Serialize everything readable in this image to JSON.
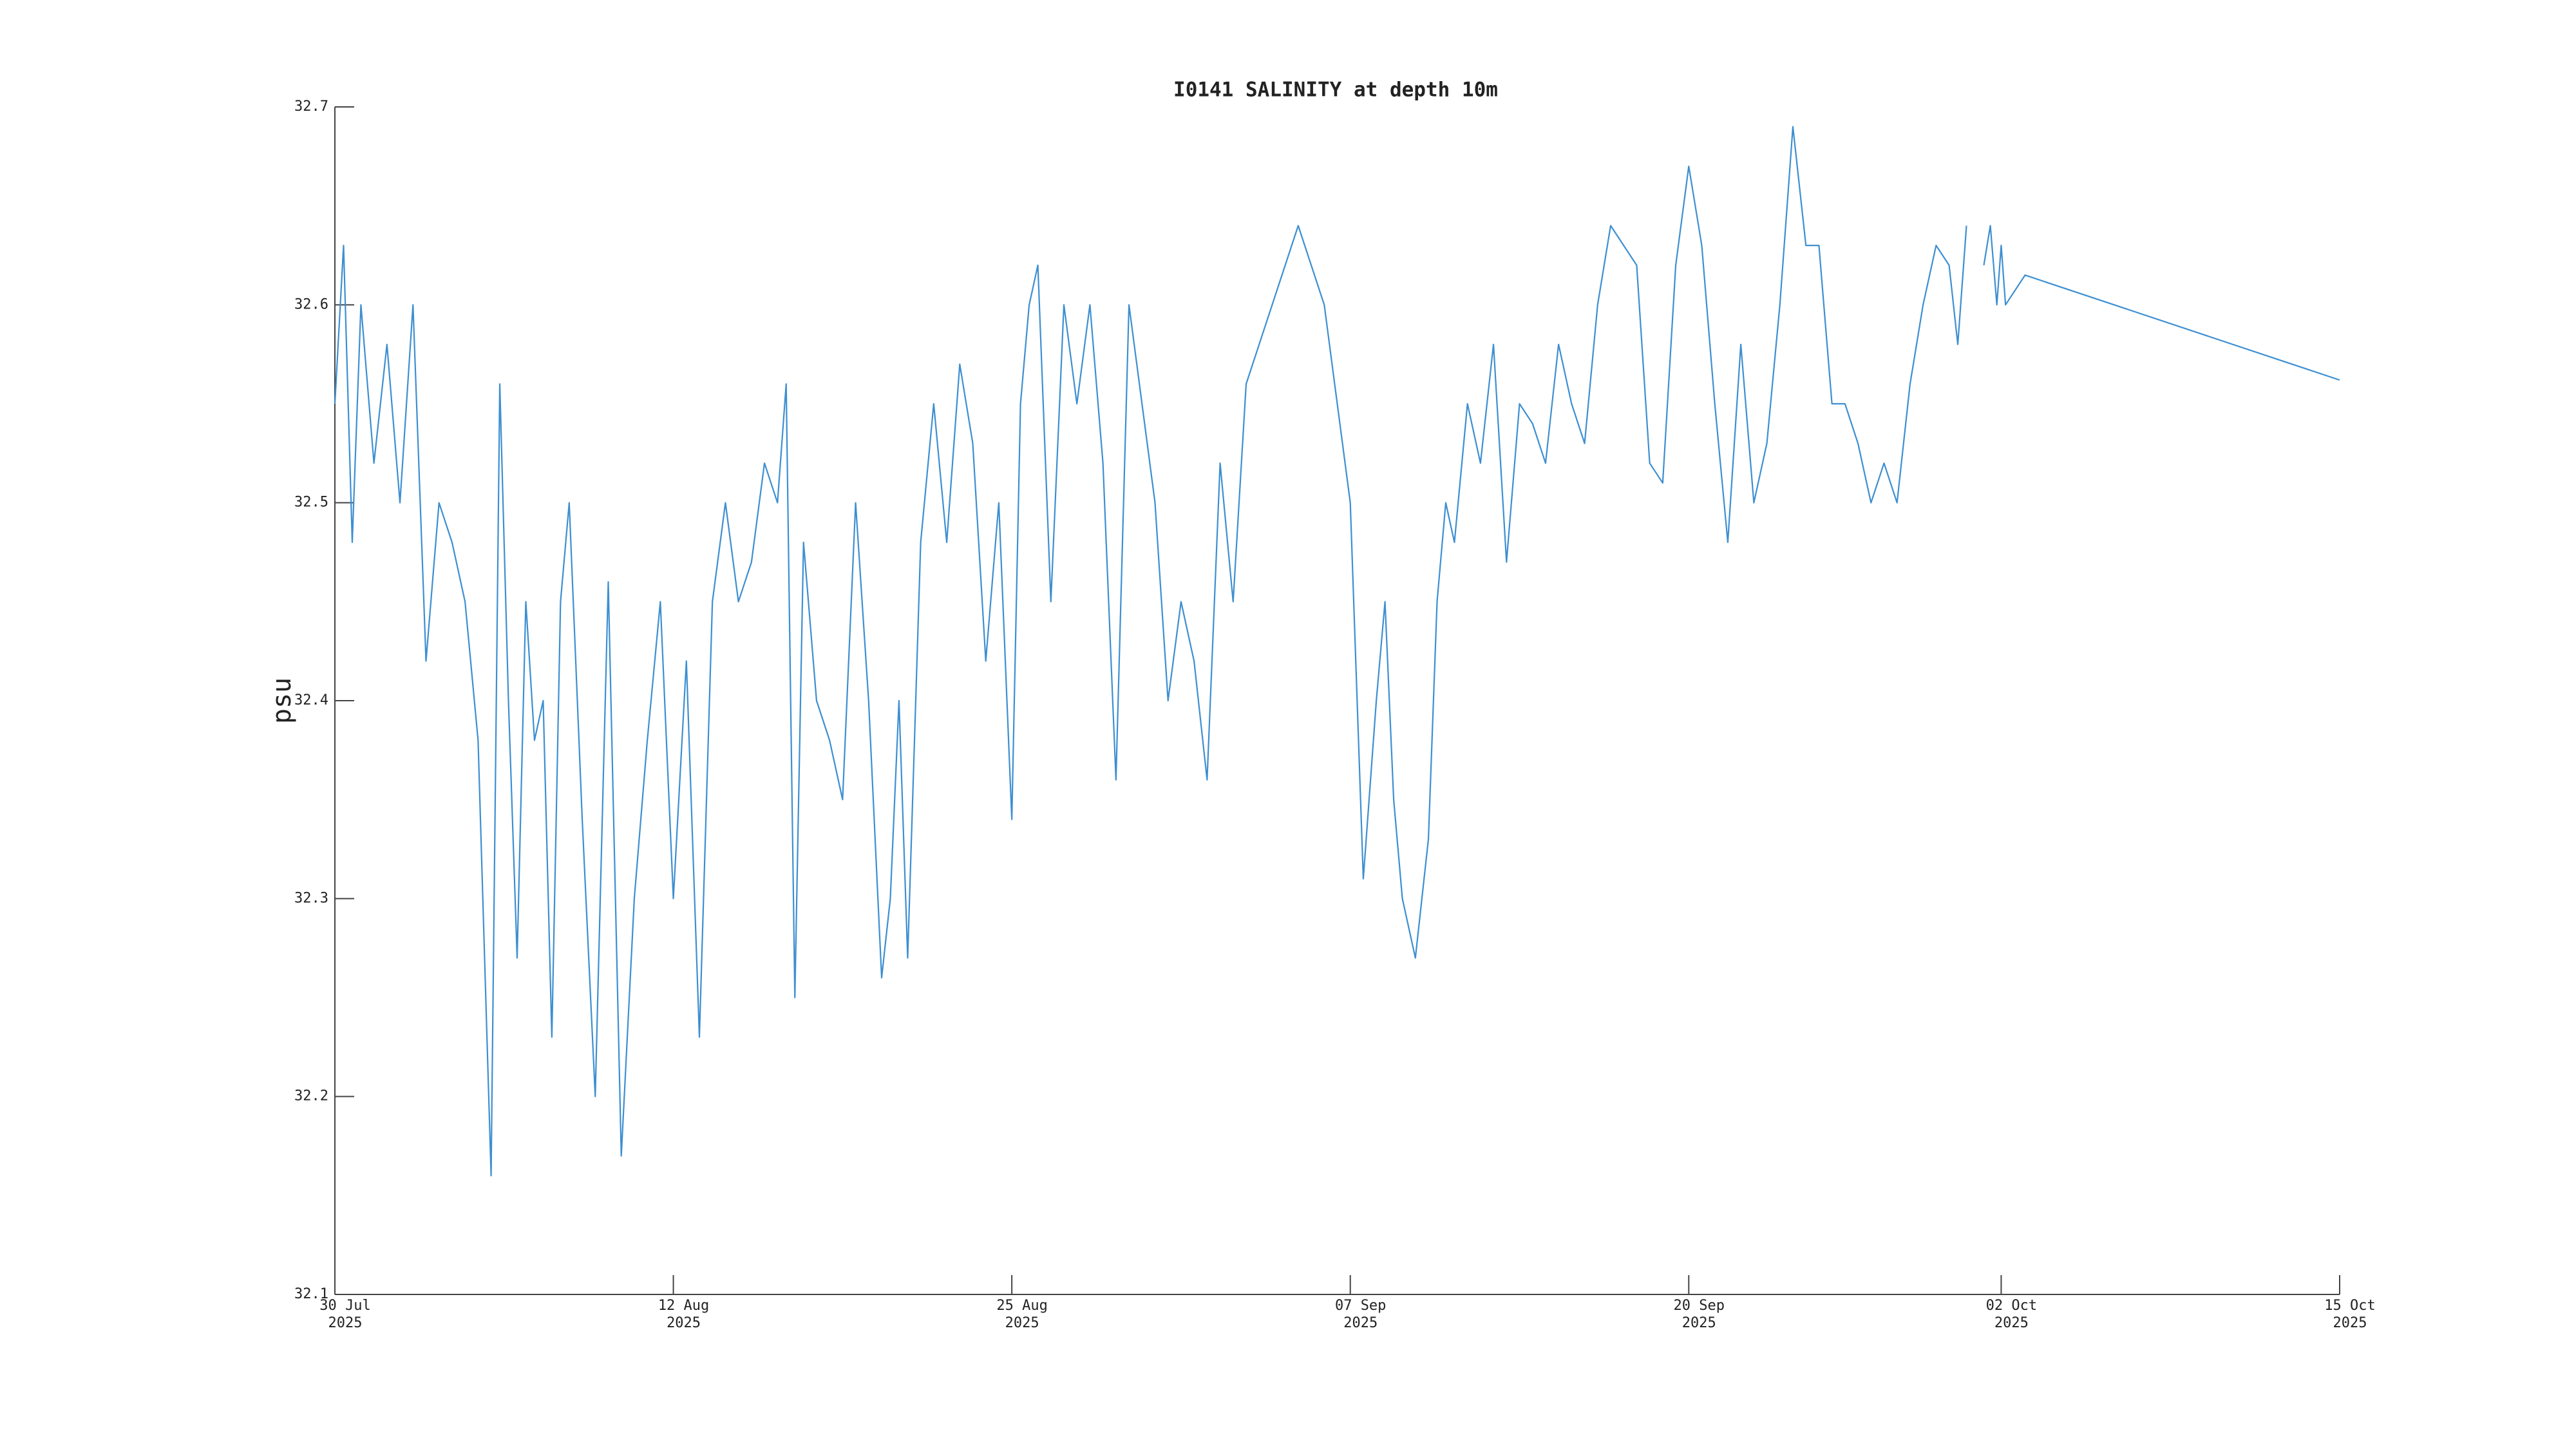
{
  "chart_data": {
    "type": "line",
    "title": "I0141 SALINITY at depth 10m",
    "ylabel": "psu",
    "color": "#3d8fd1",
    "ylim": [
      32.1,
      32.7
    ],
    "yticks": [
      32.1,
      32.2,
      32.3,
      32.4,
      32.5,
      32.6,
      32.7
    ],
    "xlim": [
      "2025-07-30",
      "2025-10-15"
    ],
    "xticks": [
      {
        "value": "2025-07-30",
        "label": "30 Jul\n2025"
      },
      {
        "value": "2025-08-12",
        "label": "12 Aug\n2025"
      },
      {
        "value": "2025-08-25",
        "label": "25 Aug\n2025"
      },
      {
        "value": "2025-09-07",
        "label": "07 Sep\n2025"
      },
      {
        "value": "2025-09-20",
        "label": "20 Sep\n2025"
      },
      {
        "value": "2025-10-02",
        "label": "02 Oct\n2025"
      },
      {
        "value": "2025-10-15",
        "label": "15 Oct\n2025"
      }
    ],
    "x": [
      "2025-07-30T00:00",
      "2025-07-30T08:00",
      "2025-07-30T16:00",
      "2025-07-31T00:00",
      "2025-07-31T12:00",
      "2025-08-01T00:00",
      "2025-08-01T12:00",
      "2025-08-02T00:00",
      "2025-08-02T12:00",
      "2025-08-03T00:00",
      "2025-08-03T12:00",
      "2025-08-04T00:00",
      "2025-08-04T12:00",
      "2025-08-05T00:00",
      "2025-08-05T08:00",
      "2025-08-05T16:00",
      "2025-08-06T00:00",
      "2025-08-06T08:00",
      "2025-08-06T16:00",
      "2025-08-07T00:00",
      "2025-08-07T08:00",
      "2025-08-07T16:00",
      "2025-08-08T00:00",
      "2025-08-08T12:00",
      "2025-08-09T00:00",
      "2025-08-09T12:00",
      "2025-08-10T00:00",
      "2025-08-10T12:00",
      "2025-08-11T00:00",
      "2025-08-11T12:00",
      "2025-08-12T00:00",
      "2025-08-12T12:00",
      "2025-08-13T00:00",
      "2025-08-13T12:00",
      "2025-08-14T00:00",
      "2025-08-14T12:00",
      "2025-08-15T00:00",
      "2025-08-15T12:00",
      "2025-08-16T00:00",
      "2025-08-16T08:00",
      "2025-08-16T16:00",
      "2025-08-17T00:00",
      "2025-08-17T12:00",
      "2025-08-18T00:00",
      "2025-08-18T12:00",
      "2025-08-19T00:00",
      "2025-08-19T12:00",
      "2025-08-20T00:00",
      "2025-08-20T08:00",
      "2025-08-20T16:00",
      "2025-08-21T00:00",
      "2025-08-21T12:00",
      "2025-08-22T00:00",
      "2025-08-22T12:00",
      "2025-08-23T00:00",
      "2025-08-23T12:00",
      "2025-08-24T00:00",
      "2025-08-24T12:00",
      "2025-08-25T00:00",
      "2025-08-25T08:00",
      "2025-08-25T16:00",
      "2025-08-26T00:00",
      "2025-08-26T12:00",
      "2025-08-27T00:00",
      "2025-08-27T12:00",
      "2025-08-28T00:00",
      "2025-08-28T12:00",
      "2025-08-29T00:00",
      "2025-08-29T12:00",
      "2025-08-30T00:00",
      "2025-08-30T12:00",
      "2025-08-31T00:00",
      "2025-08-31T12:00",
      "2025-09-01T00:00",
      "2025-09-01T12:00",
      "2025-09-02T00:00",
      "2025-09-02T12:00",
      "2025-09-03T00:00",
      "2025-09-03T12:00",
      "2025-09-04T00:00",
      "2025-09-04T12:00",
      "2025-09-05T00:00",
      "2025-09-05T12:00",
      "2025-09-06T00:00",
      "2025-09-06T12:00",
      "2025-09-07T00:00",
      "2025-09-07T12:00",
      "2025-09-08T00:00",
      "2025-09-08T08:00",
      "2025-09-08T16:00",
      "2025-09-09T00:00",
      "2025-09-09T12:00",
      "2025-09-10T00:00",
      "2025-09-10T08:00",
      "2025-09-10T16:00",
      "2025-09-11T00:00",
      "2025-09-11T12:00",
      "2025-09-12T00:00",
      "2025-09-12T12:00",
      "2025-09-13T00:00",
      "2025-09-13T12:00",
      "2025-09-14T00:00",
      "2025-09-14T12:00",
      "2025-09-15T00:00",
      "2025-09-15T12:00",
      "2025-09-16T00:00",
      "2025-09-16T12:00",
      "2025-09-17T00:00",
      "2025-09-17T12:00",
      "2025-09-18T00:00",
      "2025-09-18T12:00",
      "2025-09-19T00:00",
      "2025-09-19T12:00",
      "2025-09-20T00:00",
      "2025-09-20T12:00",
      "2025-09-21T00:00",
      "2025-09-21T12:00",
      "2025-09-22T00:00",
      "2025-09-22T12:00",
      "2025-09-23T00:00",
      "2025-09-23T12:00",
      "2025-09-24T00:00",
      "2025-09-24T12:00",
      "2025-09-25T00:00",
      "2025-09-25T12:00",
      "2025-09-26T00:00",
      "2025-09-26T12:00",
      "2025-09-27T00:00",
      "2025-09-27T12:00",
      "2025-09-28T00:00",
      "2025-09-28T12:00",
      "2025-09-29T00:00",
      "2025-09-29T12:00",
      "2025-09-30T00:00",
      "2025-09-30T08:00",
      "2025-09-30T16:00",
      "2025-10-01T00:00",
      "2025-10-01T08:00",
      "2025-10-01T14:00",
      "2025-10-01T20:00",
      "2025-10-02T00:00",
      "2025-10-02T04:00",
      "2025-10-02T22:00",
      "2025-10-15T00:00"
    ],
    "values": [
      32.55,
      32.63,
      32.48,
      32.6,
      32.52,
      32.58,
      32.5,
      32.6,
      32.42,
      32.5,
      32.48,
      32.45,
      32.38,
      32.16,
      32.56,
      32.4,
      32.27,
      32.45,
      32.38,
      32.4,
      32.23,
      32.45,
      32.5,
      32.34,
      32.2,
      32.46,
      32.17,
      32.3,
      32.38,
      32.45,
      32.3,
      32.42,
      32.23,
      32.45,
      32.5,
      32.45,
      32.47,
      32.52,
      32.5,
      32.56,
      32.25,
      32.48,
      32.4,
      32.38,
      32.35,
      32.5,
      32.4,
      32.26,
      32.3,
      32.4,
      32.27,
      32.48,
      32.55,
      32.48,
      32.57,
      32.53,
      32.42,
      32.5,
      32.34,
      32.55,
      32.6,
      32.62,
      32.45,
      32.6,
      32.55,
      32.6,
      32.52,
      32.36,
      32.6,
      32.55,
      32.5,
      32.4,
      32.45,
      32.42,
      32.36,
      32.52,
      32.45,
      32.56,
      32.58,
      32.6,
      32.62,
      32.64,
      32.62,
      32.6,
      32.55,
      32.5,
      32.31,
      32.4,
      32.45,
      32.35,
      32.3,
      32.27,
      32.33,
      32.45,
      32.5,
      32.48,
      32.55,
      32.52,
      32.58,
      32.47,
      32.55,
      32.54,
      32.52,
      32.58,
      32.55,
      32.53,
      32.6,
      32.64,
      32.63,
      32.62,
      32.52,
      32.51,
      32.62,
      32.67,
      32.63,
      32.55,
      32.48,
      32.58,
      32.5,
      32.53,
      32.6,
      32.69,
      32.63,
      32.63,
      32.55,
      32.55,
      32.53,
      32.5,
      32.52,
      32.5,
      32.56,
      32.6,
      32.63,
      32.62,
      32.58,
      32.64,
      null,
      32.62,
      32.64,
      32.6,
      32.63,
      32.6,
      32.615,
      32.562
    ]
  }
}
